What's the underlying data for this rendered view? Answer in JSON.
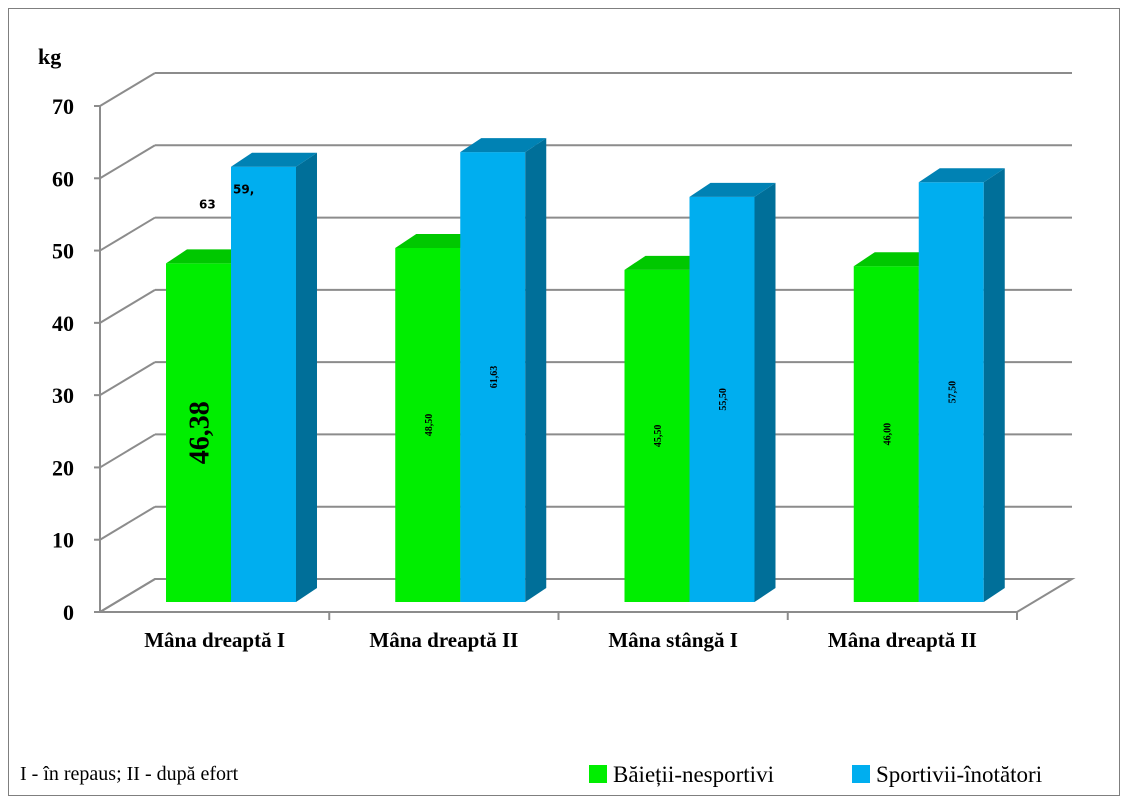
{
  "chart_data": {
    "type": "bar",
    "title": "",
    "ylabel": "kg",
    "ylim": [
      0,
      70
    ],
    "yticks": [
      0,
      10,
      20,
      30,
      40,
      50,
      60,
      70
    ],
    "grid": true,
    "categories": [
      "Mâna dreaptă I",
      "Mâna dreaptă II",
      "Mâna stângă I",
      "Mâna dreaptă II"
    ],
    "series": [
      {
        "name": "Băieții-nesportivi",
        "color": "#00ee00",
        "values": [
          46.38,
          48.5,
          45.5,
          46.0
        ]
      },
      {
        "name": "Sportivii-înotători",
        "color": "#00aeef",
        "values": [
          59.63,
          61.63,
          55.5,
          57.5
        ]
      }
    ],
    "data_labels": [
      [
        "46,38",
        "48,50",
        "45,50",
        "46,00"
      ],
      [
        "59,63",
        "61,63",
        "55,50",
        "57,50"
      ]
    ],
    "data_label_fragments": {
      "first_blue_top": "59,",
      "first_blue_rest": "63"
    },
    "footnote": "I - în repaus; II - după efort",
    "legend_position": "bottom-right"
  }
}
